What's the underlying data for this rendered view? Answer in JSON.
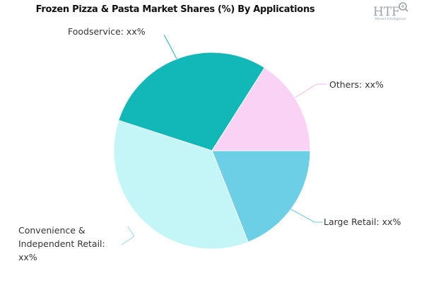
{
  "chart_data": {
    "type": "pie",
    "title": "Frozen Pizza & Pasta Market Shares (%) By Applications",
    "start_angle_deg": 0,
    "direction": "clockwise",
    "slices": [
      {
        "label_lines": [
          "Large Retail: xx%"
        ],
        "value": 19,
        "color": "#6ccfe6",
        "leader_color": "#6ccfe6"
      },
      {
        "label_lines": [
          "Convenience &",
          "Independent Retail:",
          "xx%"
        ],
        "value": 36,
        "color": "#c4f6f8",
        "leader_color": "#8fdbe6"
      },
      {
        "label_lines": [
          "Foodservice: xx%"
        ],
        "value": 29,
        "color": "#12b8b8",
        "leader_color": "#12b8b8"
      },
      {
        "label_lines": [
          "Others: xx%"
        ],
        "value": 16,
        "color": "#f9d2f6",
        "leader_color": "#f2b6ee"
      }
    ]
  },
  "logo": {
    "text": "HTF",
    "subtext": "Market Intelligence",
    "icon": "magnifier-icon"
  }
}
